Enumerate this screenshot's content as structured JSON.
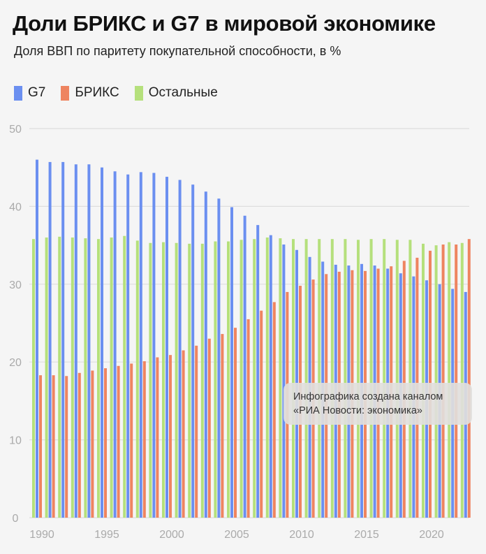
{
  "title": "Доли БРИКС и G7 в мировой экономике",
  "subtitle": "Доля ВВП по паритету покупательной способности, в %",
  "note": {
    "line1": "Инфографика создана каналом",
    "line2": "«РИА Новости: экономика»"
  },
  "chart_data": {
    "type": "bar",
    "title": "Доли БРИКС и G7 в мировой экономике",
    "subtitle": "Доля ВВП по паритету покупательной способности, в %",
    "ylim": [
      0,
      50
    ],
    "yticks": [
      0,
      10,
      20,
      30,
      40,
      50
    ],
    "xticks": [
      1990,
      1995,
      2000,
      2005,
      2010,
      2015,
      2020
    ],
    "grid": true,
    "legend_position": "top-left",
    "categories": [
      1990,
      1991,
      1992,
      1993,
      1994,
      1995,
      1996,
      1997,
      1998,
      1999,
      2000,
      2001,
      2002,
      2003,
      2004,
      2005,
      2006,
      2007,
      2008,
      2009,
      2010,
      2011,
      2012,
      2013,
      2014,
      2015,
      2016,
      2017,
      2018,
      2019,
      2020,
      2021,
      2022,
      2023
    ],
    "series": [
      {
        "name": "G7",
        "color": "#6b8ff0",
        "values": [
          46.0,
          45.7,
          45.7,
          45.4,
          45.4,
          45.0,
          44.5,
          44.1,
          44.4,
          44.3,
          43.8,
          43.4,
          42.8,
          41.9,
          41.0,
          39.9,
          38.8,
          37.6,
          36.3,
          35.1,
          34.4,
          33.5,
          32.9,
          32.5,
          32.4,
          32.6,
          32.4,
          32.0,
          31.4,
          31.0,
          30.5,
          30.0,
          29.4,
          29.0
        ]
      },
      {
        "name": "БРИКС",
        "color": "#ee8460",
        "values": [
          18.3,
          18.3,
          18.2,
          18.6,
          18.9,
          19.2,
          19.5,
          19.8,
          20.1,
          20.6,
          20.9,
          21.5,
          22.1,
          23.0,
          23.6,
          24.4,
          25.5,
          26.6,
          27.7,
          29.0,
          29.8,
          30.6,
          31.3,
          31.6,
          31.8,
          31.7,
          32.0,
          32.3,
          33.0,
          33.4,
          34.3,
          35.1,
          35.1,
          35.8
        ]
      },
      {
        "name": "Остальные",
        "color": "#b5e07c",
        "values": [
          35.8,
          36.0,
          36.1,
          36.0,
          35.9,
          35.8,
          36.0,
          36.2,
          35.6,
          35.3,
          35.4,
          35.3,
          35.2,
          35.2,
          35.5,
          35.5,
          35.7,
          35.8,
          36.0,
          35.9,
          35.8,
          35.8,
          35.8,
          35.8,
          35.8,
          35.7,
          35.8,
          35.8,
          35.7,
          35.7,
          35.2,
          35.0,
          35.4,
          35.3
        ]
      }
    ]
  }
}
